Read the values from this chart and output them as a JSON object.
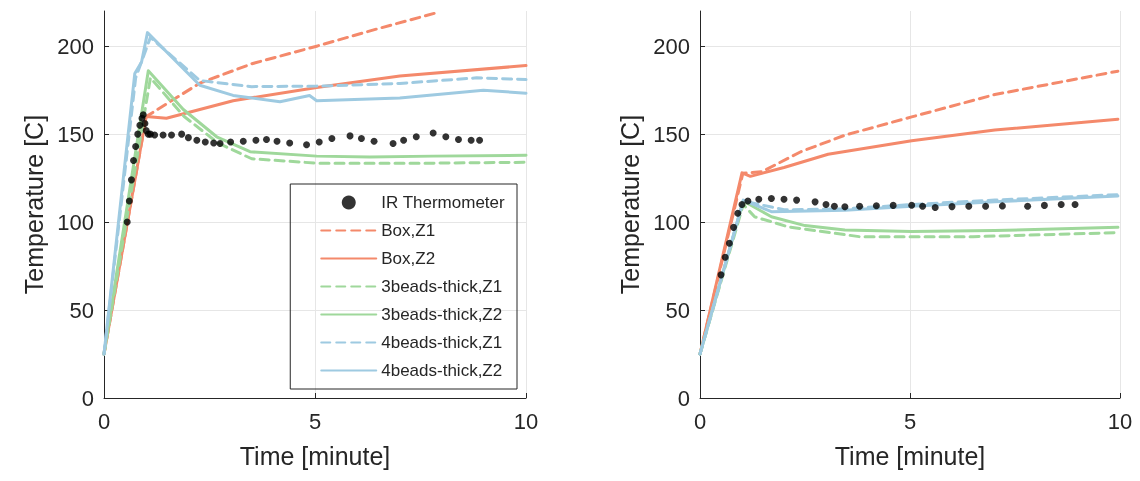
{
  "chart_data": [
    {
      "type": "line",
      "xlabel": "Time [minute]",
      "ylabel": "Temperature [C]",
      "xlim": [
        0,
        10
      ],
      "xticks": [
        0,
        5,
        10
      ],
      "ylim": [
        0,
        220
      ],
      "yticks": [
        0,
        50,
        100,
        150,
        200
      ],
      "grid": true,
      "legend": "bottom right",
      "series": [
        {
          "name": "IR Thermometer",
          "type": "scatter",
          "marker": "circle",
          "color": "#000000",
          "x": [
            0.55,
            0.6,
            0.65,
            0.7,
            0.75,
            0.8,
            0.85,
            0.9,
            0.93,
            0.97,
            1.0,
            1.05,
            1.1,
            1.2,
            1.4,
            1.6,
            1.84,
            2.0,
            2.2,
            2.4,
            2.6,
            2.75,
            3.0,
            3.3,
            3.6,
            3.85,
            4.1,
            4.4,
            4.8,
            5.1,
            5.4,
            5.83,
            6.1,
            6.4,
            6.85,
            7.1,
            7.4,
            7.8,
            8.1,
            8.4,
            8.7,
            8.9
          ],
          "values": [
            100,
            112,
            124,
            135,
            143,
            150,
            155,
            159,
            161,
            156,
            152,
            150,
            150,
            149.5,
            149.5,
            149.5,
            150,
            148,
            146.5,
            145.5,
            145,
            144.7,
            145.5,
            146,
            146.5,
            147,
            146,
            145,
            144,
            145.5,
            147.5,
            149,
            147.5,
            146,
            144.7,
            146.5,
            148.5,
            150.6,
            148.5,
            147,
            146.5,
            146.5
          ]
        },
        {
          "name": "Box,Z1",
          "type": "line",
          "line_style": "dashed",
          "color": "#f4896b",
          "x": [
            0,
            1.0,
            2.27,
            3.5,
            5.04,
            6.5,
            7.88
          ],
          "values": [
            25,
            160,
            179,
            190,
            200,
            210,
            219
          ]
        },
        {
          "name": "Box,Z2",
          "type": "line",
          "line_style": "solid",
          "color": "#f4896b",
          "x": [
            0,
            1.0,
            1.48,
            3.06,
            5.04,
            7.01,
            10
          ],
          "values": [
            25,
            160,
            159,
            169,
            176.5,
            183,
            189
          ]
        },
        {
          "name": "3beads-thick,Z1",
          "type": "line",
          "line_style": "dashed",
          "color": "#9fd89b",
          "x": [
            0,
            1.1,
            1.9,
            2.7,
            3.5,
            5.04,
            7.8,
            10
          ],
          "values": [
            25,
            182,
            160,
            145,
            136,
            133.5,
            133.5,
            134
          ]
        },
        {
          "name": "3beads-thick,Z2",
          "type": "line",
          "line_style": "solid",
          "color": "#9fd89b",
          "x": [
            0,
            1.05,
            1.88,
            2.67,
            3.46,
            5.04,
            6.3,
            7.8,
            10
          ],
          "values": [
            25,
            186,
            164,
            148.5,
            140,
            137.5,
            137,
            137.5,
            138
          ]
        },
        {
          "name": "4beads-thick,Z1",
          "type": "line",
          "line_style": "dashed",
          "color": "#9ecae1",
          "x": [
            0,
            0.75,
            1.1,
            2.27,
            3.5,
            5.04,
            7.01,
            8.83,
            10
          ],
          "values": [
            25,
            182,
            205,
            180.5,
            177,
            177.3,
            178.8,
            182,
            181
          ]
        },
        {
          "name": "4beads-thick,Z2",
          "type": "line",
          "line_style": "solid",
          "color": "#9ecae1",
          "x": [
            0,
            0.73,
            0.89,
            1.03,
            2.27,
            3.06,
            4.17,
            4.87,
            5.04,
            7.01,
            8.99,
            10
          ],
          "values": [
            25,
            184.5,
            191,
            207.7,
            177.8,
            172,
            168.4,
            172,
            169,
            170.5,
            175,
            173.3
          ]
        }
      ]
    },
    {
      "type": "line",
      "xlabel": "Time [minute]",
      "ylabel": "Temperature [C]",
      "xlim": [
        0,
        10
      ],
      "xticks": [
        0,
        5,
        10
      ],
      "ylim": [
        0,
        220
      ],
      "yticks": [
        0,
        50,
        100,
        150,
        200
      ],
      "grid": true,
      "series": [
        {
          "type": "scatter",
          "marker": "circle",
          "color": "#000000",
          "x": [
            0.5,
            0.6,
            0.7,
            0.8,
            0.9,
            1.0,
            1.14,
            1.4,
            1.7,
            2.0,
            2.3,
            2.74,
            3.0,
            3.2,
            3.45,
            3.8,
            4.2,
            4.6,
            5.04,
            5.3,
            5.6,
            6.0,
            6.4,
            6.8,
            7.2,
            7.8,
            8.2,
            8.6,
            8.93
          ],
          "values": [
            70,
            80,
            88,
            97,
            105,
            110,
            112,
            113,
            113.4,
            113,
            112.5,
            111.5,
            110,
            109,
            108.7,
            109,
            109.3,
            109.5,
            109.6,
            109,
            108.3,
            108.8,
            109,
            109,
            109.2,
            109,
            109.5,
            110,
            110
          ]
        },
        {
          "type": "line",
          "line_style": "dashed",
          "color": "#f4896b",
          "x": [
            0,
            1.02,
            1.47,
            2.4,
            3.45,
            5.04,
            7.02,
            9.95
          ],
          "values": [
            25,
            127.7,
            128.6,
            140,
            149.4,
            159.8,
            172.5,
            185.8
          ]
        },
        {
          "type": "line",
          "line_style": "solid",
          "color": "#f4896b",
          "x": [
            0,
            1.0,
            1.2,
            2.0,
            3.05,
            5.04,
            7.02,
            9.95
          ],
          "values": [
            25,
            128,
            126,
            131,
            138.6,
            146.2,
            152.3,
            158.5
          ]
        },
        {
          "type": "line",
          "line_style": "dashed",
          "color": "#9fd89b",
          "x": [
            0,
            1.03,
            1.3,
            2.1,
            3.8,
            6.5,
            9.95
          ],
          "values": [
            25,
            110,
            103,
            97.3,
            91.7,
            91.7,
            94
          ]
        },
        {
          "type": "line",
          "line_style": "solid",
          "color": "#9fd89b",
          "x": [
            0,
            1.03,
            1.7,
            2.5,
            3.45,
            5.04,
            7.02,
            9.95
          ],
          "values": [
            25,
            112,
            103,
            98,
            95.5,
            94.6,
            95.2,
            97
          ]
        },
        {
          "type": "line",
          "line_style": "dashed",
          "color": "#9ecae1",
          "x": [
            0,
            1.03,
            2.0,
            3.45,
            5.04,
            7.02,
            9.95
          ],
          "values": [
            25,
            112,
            107,
            107.5,
            110,
            112.5,
            115.6
          ]
        },
        {
          "type": "line",
          "line_style": "solid",
          "color": "#9ecae1",
          "x": [
            0,
            1.03,
            1.7,
            3.45,
            5.04,
            7.02,
            9.95
          ],
          "values": [
            25,
            112.5,
            105.9,
            106.8,
            109,
            111.6,
            114.8
          ]
        }
      ]
    }
  ]
}
